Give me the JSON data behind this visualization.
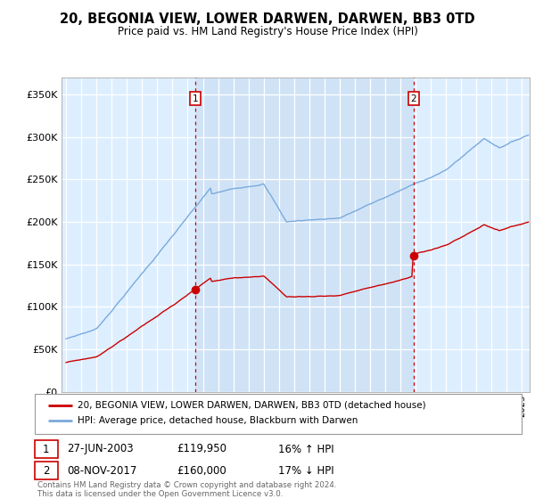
{
  "title": "20, BEGONIA VIEW, LOWER DARWEN, DARWEN, BB3 0TD",
  "subtitle": "Price paid vs. HM Land Registry's House Price Index (HPI)",
  "legend_line1": "20, BEGONIA VIEW, LOWER DARWEN, DARWEN, BB3 0TD (detached house)",
  "legend_line2": "HPI: Average price, detached house, Blackburn with Darwen",
  "sale1_date": "27-JUN-2003",
  "sale1_price": "£119,950",
  "sale1_hpi": "16% ↑ HPI",
  "sale2_date": "08-NOV-2017",
  "sale2_price": "£160,000",
  "sale2_hpi": "17% ↓ HPI",
  "footer": "Contains HM Land Registry data © Crown copyright and database right 2024.\nThis data is licensed under the Open Government Licence v3.0.",
  "sale_color": "#cc0000",
  "hpi_color": "#7aaadd",
  "vline_color": "#cc0000",
  "plot_bg": "#ddeeff",
  "fill_bg": "#c8dcf0",
  "ylim": [
    0,
    370000
  ],
  "yticks": [
    0,
    50000,
    100000,
    150000,
    200000,
    250000,
    300000,
    350000
  ],
  "sale1_year": 2003.5,
  "sale1_price_num": 119950,
  "sale2_year": 2017.85,
  "sale2_price_num": 160000,
  "marker1_x": 2003.5,
  "marker1_y": 119950,
  "marker2_x": 2017.85,
  "marker2_y": 160000,
  "xmin": 1994.7,
  "xmax": 2025.5
}
